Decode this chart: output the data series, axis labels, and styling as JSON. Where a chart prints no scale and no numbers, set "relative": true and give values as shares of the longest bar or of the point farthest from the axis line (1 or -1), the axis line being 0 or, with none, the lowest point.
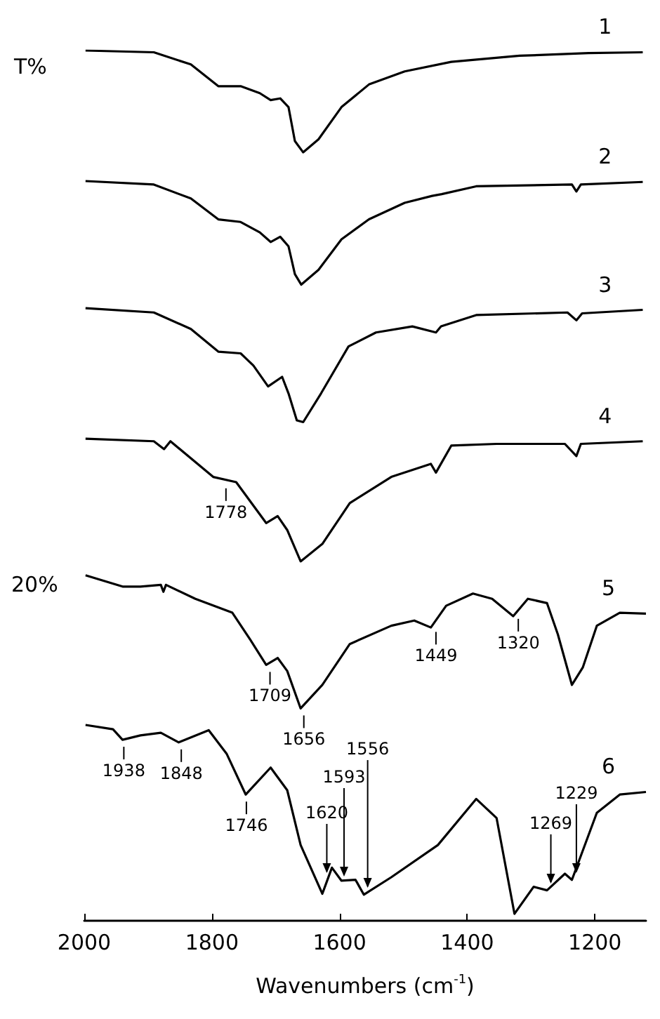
{
  "chart_data": {
    "type": "line",
    "relative": true,
    "ylabel": "T%",
    "xlabel": "Wavenumbers (cm$^{-1}$)",
    "xlim": [
      2000,
      1120
    ],
    "xticks": [
      2000,
      1800,
      1600,
      1400,
      1200
    ],
    "grid": false,
    "legend": false,
    "marker": "none",
    "line_style": "solid",
    "series": [
      {
        "name": "1",
        "color": "#000000",
        "x": [
          1998,
          1891,
          1833,
          1790,
          1755,
          1725,
          1708,
          1693,
          1680,
          1670,
          1657,
          1633,
          1597,
          1554,
          1498,
          1425,
          1318,
          1210,
          1125
        ],
        "values": [
          1.0,
          0.998,
          0.984,
          0.959,
          0.959,
          0.951,
          0.943,
          0.945,
          0.935,
          0.896,
          0.883,
          0.898,
          0.935,
          0.961,
          0.976,
          0.987,
          0.994,
          0.997,
          0.998
        ]
      },
      {
        "name": "2",
        "color": "#000000",
        "x": [
          1998,
          1891,
          1833,
          1790,
          1755,
          1725,
          1708,
          1693,
          1680,
          1670,
          1660,
          1633,
          1597,
          1554,
          1498,
          1455,
          1440,
          1386,
          1236,
          1229,
          1222,
          1125
        ],
        "values": [
          0.85,
          0.846,
          0.83,
          0.806,
          0.803,
          0.791,
          0.78,
          0.786,
          0.775,
          0.743,
          0.731,
          0.748,
          0.783,
          0.806,
          0.825,
          0.833,
          0.835,
          0.844,
          0.846,
          0.838,
          0.846,
          0.849
        ]
      },
      {
        "name": "3",
        "color": "#000000",
        "x": [
          1998,
          1891,
          1833,
          1790,
          1755,
          1735,
          1712,
          1690,
          1680,
          1667,
          1657,
          1629,
          1586,
          1543,
          1486,
          1449,
          1441,
          1386,
          1243,
          1229,
          1220,
          1125
        ],
        "values": [
          0.704,
          0.699,
          0.68,
          0.654,
          0.652,
          0.638,
          0.614,
          0.625,
          0.606,
          0.575,
          0.573,
          0.606,
          0.66,
          0.676,
          0.683,
          0.676,
          0.683,
          0.696,
          0.699,
          0.69,
          0.698,
          0.702
        ]
      },
      {
        "name": "4",
        "color": "#000000",
        "x": [
          1998,
          1891,
          1875,
          1865,
          1798,
          1762,
          1715,
          1697,
          1682,
          1661,
          1627,
          1584,
          1519,
          1457,
          1449,
          1425,
          1354,
          1247,
          1229,
          1222,
          1125
        ],
        "values": [
          0.554,
          0.551,
          0.542,
          0.551,
          0.51,
          0.504,
          0.457,
          0.465,
          0.449,
          0.413,
          0.433,
          0.48,
          0.51,
          0.525,
          0.515,
          0.546,
          0.548,
          0.548,
          0.534,
          0.548,
          0.551
        ]
      },
      {
        "name": "5",
        "color": "#000000",
        "x": [
          1998,
          1940,
          1912,
          1880,
          1876,
          1872,
          1826,
          1768,
          1740,
          1715,
          1697,
          1682,
          1661,
          1627,
          1584,
          1519,
          1483,
          1457,
          1433,
          1391,
          1361,
          1328,
          1305,
          1275,
          1258,
          1236,
          1219,
          1197,
          1161,
          1120
        ],
        "values": [
          0.397,
          0.384,
          0.384,
          0.386,
          0.378,
          0.386,
          0.37,
          0.354,
          0.323,
          0.294,
          0.302,
          0.287,
          0.244,
          0.271,
          0.318,
          0.339,
          0.345,
          0.337,
          0.362,
          0.376,
          0.37,
          0.35,
          0.37,
          0.365,
          0.329,
          0.271,
          0.291,
          0.339,
          0.354,
          0.353
        ]
      },
      {
        "name": "6",
        "color": "#000000",
        "x": [
          1998,
          1955,
          1940,
          1912,
          1880,
          1852,
          1805,
          1777,
          1747,
          1708,
          1682,
          1661,
          1627,
          1612,
          1597,
          1575,
          1562,
          1519,
          1446,
          1386,
          1354,
          1326,
          1296,
          1275,
          1247,
          1236,
          1197,
          1161,
          1120
        ],
        "values": [
          0.225,
          0.22,
          0.208,
          0.213,
          0.216,
          0.205,
          0.219,
          0.192,
          0.145,
          0.176,
          0.15,
          0.087,
          0.031,
          0.061,
          0.046,
          0.047,
          0.03,
          0.05,
          0.087,
          0.14,
          0.118,
          0.008,
          0.039,
          0.035,
          0.054,
          0.047,
          0.124,
          0.145,
          0.148
        ]
      }
    ],
    "annotations": [
      "20%",
      {
        "text": "1778",
        "x": 1778,
        "y": 0.505
      },
      {
        "text": "1709",
        "x": 1709,
        "y": 0.294
      },
      {
        "text": "1656",
        "x": 1656,
        "y": 0.244
      },
      {
        "text": "1449",
        "x": 1449,
        "y": 0.34
      },
      {
        "text": "1320",
        "x": 1320,
        "y": 0.355
      },
      {
        "text": "1938",
        "x": 1938,
        "y": 0.208
      },
      {
        "text": "1848",
        "x": 1848,
        "y": 0.205
      },
      {
        "text": "1746",
        "x": 1746,
        "y": 0.145
      },
      {
        "text": "1620",
        "x": 1620,
        "y": 0.05
      },
      {
        "text": "1593",
        "x": 1593,
        "y": 0.046
      },
      {
        "text": "1556",
        "x": 1556,
        "y": 0.033
      },
      {
        "text": "1269",
        "x": 1269,
        "y": 0.038
      },
      {
        "text": "1229",
        "x": 1229,
        "y": 0.05
      }
    ]
  }
}
